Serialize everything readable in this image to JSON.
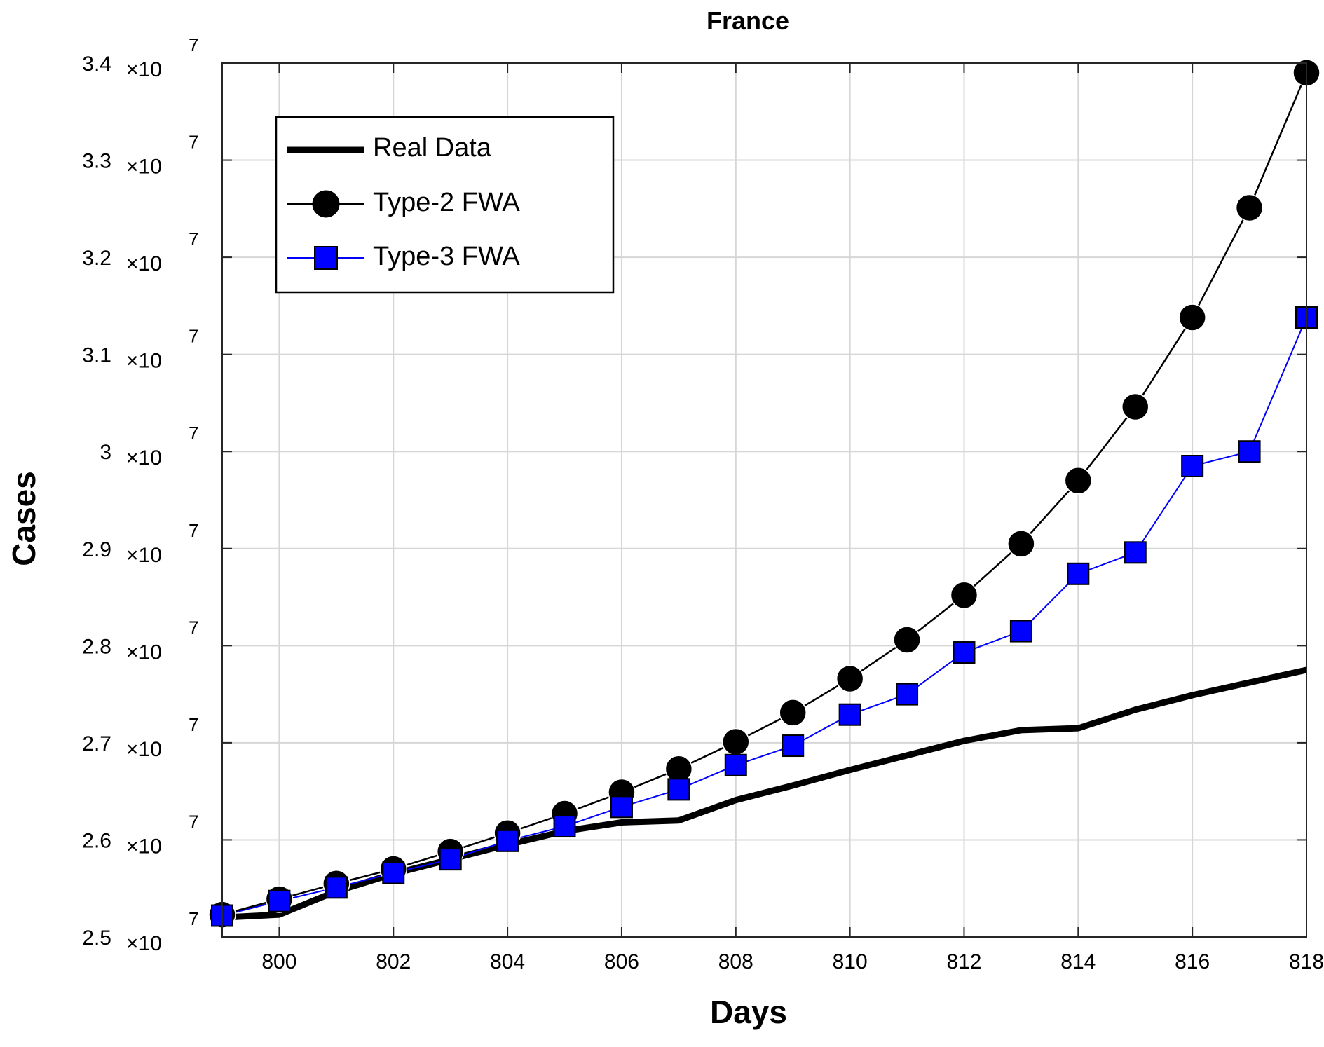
{
  "chart_data": {
    "type": "line",
    "title": "France",
    "xlabel": "Days",
    "ylabel": "Cases",
    "xlim": [
      799,
      818
    ],
    "ylim": [
      2.5,
      3.4
    ],
    "y_multiplier_label": "×10",
    "y_multiplier_exp": "7",
    "x_ticks": [
      800,
      802,
      804,
      806,
      808,
      810,
      812,
      814,
      816,
      818
    ],
    "y_ticks": [
      2.5,
      2.6,
      2.7,
      2.8,
      2.9,
      3,
      3.1,
      3.2,
      3.3,
      3.4
    ],
    "y_tick_labels": [
      "2.5",
      "2.6",
      "2.7",
      "2.8",
      "2.9",
      "3",
      "3.1",
      "3.2",
      "3.3",
      "3.4"
    ],
    "grid": true,
    "legend_position": "top-left",
    "x": [
      799,
      800,
      801,
      802,
      803,
      804,
      805,
      806,
      807,
      808,
      809,
      810,
      811,
      812,
      813,
      814,
      815,
      816,
      817,
      818
    ],
    "series": [
      {
        "name": "Real Data",
        "color": "#000000",
        "marker": "none",
        "values": [
          2.52,
          2.523,
          2.547,
          2.565,
          2.58,
          2.595,
          2.609,
          2.618,
          2.62,
          2.641,
          2.656,
          2.672,
          2.687,
          2.702,
          2.713,
          2.715,
          2.734,
          2.749,
          2.762,
          2.775
        ]
      },
      {
        "name": "Type-2 FWA",
        "color": "#000000",
        "marker": "circle",
        "values": [
          2.523,
          2.539,
          2.555,
          2.57,
          2.588,
          2.607,
          2.627,
          2.649,
          2.673,
          2.701,
          2.731,
          2.766,
          2.806,
          2.852,
          2.905,
          2.97,
          3.046,
          3.138,
          3.251,
          3.39
        ]
      },
      {
        "name": "Type-3 FWA",
        "color": "#0000ff",
        "marker": "square",
        "values": [
          2.522,
          2.537,
          2.551,
          2.566,
          2.58,
          2.599,
          2.614,
          2.634,
          2.652,
          2.677,
          2.697,
          2.729,
          2.75,
          2.793,
          2.815,
          2.874,
          2.896,
          2.985,
          3.0,
          3.138
        ]
      }
    ]
  }
}
